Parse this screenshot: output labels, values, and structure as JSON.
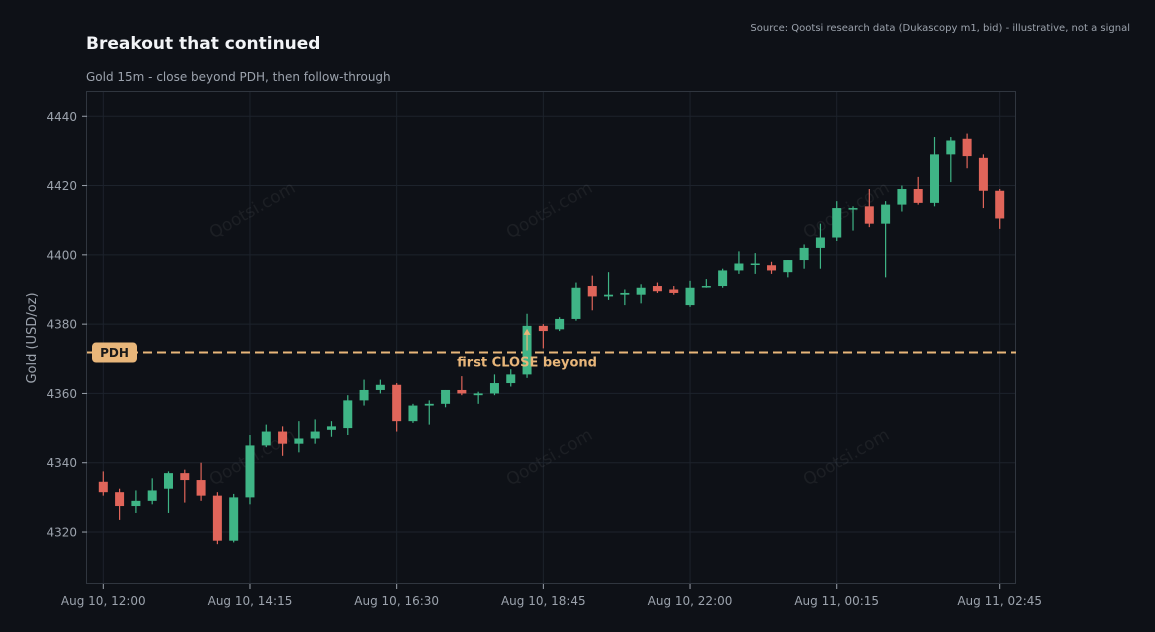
{
  "header": {
    "title": "Breakout that continued",
    "subtitle": "Gold 15m - close beyond PDH, then follow-through",
    "source": "Source: Qootsi research data (Dukascopy m1, bid) - illustrative, not a signal"
  },
  "watermark": "Qootsi.com",
  "colors": {
    "background": "#0e1117",
    "up": "#3fb586",
    "down": "#e0655a",
    "level": "#e8b67a",
    "grid": "#1d232c",
    "frame": "#30363f",
    "text": "#9ca3ad"
  },
  "chart_data": {
    "type": "candlestick",
    "title": "Breakout that continued",
    "subtitle": "Gold 15m - close beyond PDH, then follow-through",
    "ylabel": "Gold (USD/oz)",
    "xlabel": "",
    "ylim": [
      4305,
      4447
    ],
    "yticks": [
      4320,
      4340,
      4360,
      4380,
      4400,
      4420,
      4440
    ],
    "xticks": [
      {
        "index": 0,
        "label": "Aug 10, 12:00"
      },
      {
        "index": 9,
        "label": "Aug 10, 14:15"
      },
      {
        "index": 18,
        "label": "Aug 10, 16:30"
      },
      {
        "index": 27,
        "label": "Aug 10, 18:45"
      },
      {
        "index": 36,
        "label": "Aug 10, 22:00"
      },
      {
        "index": 45,
        "label": "Aug 11, 00:15"
      },
      {
        "index": 55,
        "label": "Aug 11, 02:45"
      }
    ],
    "xlim": [
      -1,
      56
    ],
    "grid": true,
    "level": {
      "name": "PDH",
      "value": 4371.8
    },
    "annotation": {
      "text": "first CLOSE beyond",
      "index": 26
    },
    "candles": [
      [
        4334.5,
        4337.5,
        4330.5,
        4331.5
      ],
      [
        4331.5,
        4332.5,
        4323.5,
        4327.5
      ],
      [
        4327.5,
        4332.0,
        4325.5,
        4329.0
      ],
      [
        4329.0,
        4335.5,
        4328.0,
        4332.0
      ],
      [
        4332.5,
        4337.5,
        4325.5,
        4337.0
      ],
      [
        4337.0,
        4338.0,
        4328.5,
        4335.0
      ],
      [
        4335.0,
        4340.0,
        4329.0,
        4330.5
      ],
      [
        4330.5,
        4331.5,
        4316.5,
        4317.5
      ],
      [
        4317.5,
        4331.0,
        4317.0,
        4330.0
      ],
      [
        4330.0,
        4348.0,
        4328.0,
        4345.0
      ],
      [
        4345.0,
        4351.0,
        4344.5,
        4349.0
      ],
      [
        4349.0,
        4350.5,
        4342.0,
        4345.5
      ],
      [
        4345.5,
        4352.0,
        4343.0,
        4347.0
      ],
      [
        4347.0,
        4352.5,
        4345.5,
        4349.0
      ],
      [
        4349.5,
        4352.0,
        4347.5,
        4350.5
      ],
      [
        4350.0,
        4359.5,
        4348.0,
        4358.0
      ],
      [
        4358.0,
        4364.0,
        4356.5,
        4361.0
      ],
      [
        4361.0,
        4364.0,
        4360.0,
        4362.5
      ],
      [
        4362.5,
        4363.0,
        4349.0,
        4352.0
      ],
      [
        4352.0,
        4357.0,
        4351.5,
        4356.5
      ],
      [
        4356.5,
        4358.0,
        4351.0,
        4357.0
      ],
      [
        4357.0,
        4361.0,
        4356.0,
        4361.0
      ],
      [
        4361.0,
        4365.0,
        4359.5,
        4360.0
      ],
      [
        4359.5,
        4360.5,
        4357.0,
        4360.0
      ],
      [
        4360.0,
        4365.5,
        4359.5,
        4363.0
      ],
      [
        4363.0,
        4367.0,
        4362.0,
        4365.5
      ],
      [
        4365.5,
        4383.0,
        4364.5,
        4379.5
      ],
      [
        4379.5,
        4380.0,
        4373.0,
        4378.0
      ],
      [
        4378.5,
        4382.0,
        4378.0,
        4381.5
      ],
      [
        4381.5,
        4392.0,
        4381.0,
        4390.5
      ],
      [
        4391.0,
        4394.0,
        4384.0,
        4388.0
      ],
      [
        4388.0,
        4395.0,
        4387.0,
        4388.5
      ],
      [
        4388.5,
        4390.0,
        4385.5,
        4389.0
      ],
      [
        4388.5,
        4391.5,
        4386.0,
        4390.5
      ],
      [
        4391.0,
        4392.0,
        4389.0,
        4389.5
      ],
      [
        4390.0,
        4391.0,
        4388.5,
        4389.0
      ],
      [
        4385.5,
        4392.5,
        4385.0,
        4390.5
      ],
      [
        4391.0,
        4393.0,
        4390.5,
        4391.0
      ],
      [
        4391.0,
        4396.0,
        4390.5,
        4395.5
      ],
      [
        4395.5,
        4401.0,
        4394.5,
        4397.5
      ],
      [
        4397.5,
        4400.5,
        4394.5,
        4397.5
      ],
      [
        4397.0,
        4398.0,
        4394.5,
        4395.5
      ],
      [
        4395.0,
        4398.5,
        4393.5,
        4398.5
      ],
      [
        4398.5,
        4403.0,
        4396.0,
        4402.0
      ],
      [
        4402.0,
        4409.0,
        4396.0,
        4405.0
      ],
      [
        4405.0,
        4415.5,
        4404.0,
        4413.5
      ],
      [
        4413.5,
        4414.0,
        4407.0,
        4413.5
      ],
      [
        4414.0,
        4419.0,
        4408.0,
        4409.0
      ],
      [
        4409.0,
        4415.5,
        4393.5,
        4414.5
      ],
      [
        4414.5,
        4420.0,
        4412.5,
        4419.0
      ],
      [
        4419.0,
        4422.5,
        4414.5,
        4415.0
      ],
      [
        4415.0,
        4434.0,
        4414.0,
        4429.0
      ],
      [
        4429.0,
        4434.0,
        4421.0,
        4433.0
      ],
      [
        4433.5,
        4435.0,
        4425.0,
        4428.5
      ],
      [
        4428.0,
        4429.0,
        4413.5,
        4418.5
      ],
      [
        4418.5,
        4419.0,
        4407.5,
        4410.5
      ]
    ]
  }
}
